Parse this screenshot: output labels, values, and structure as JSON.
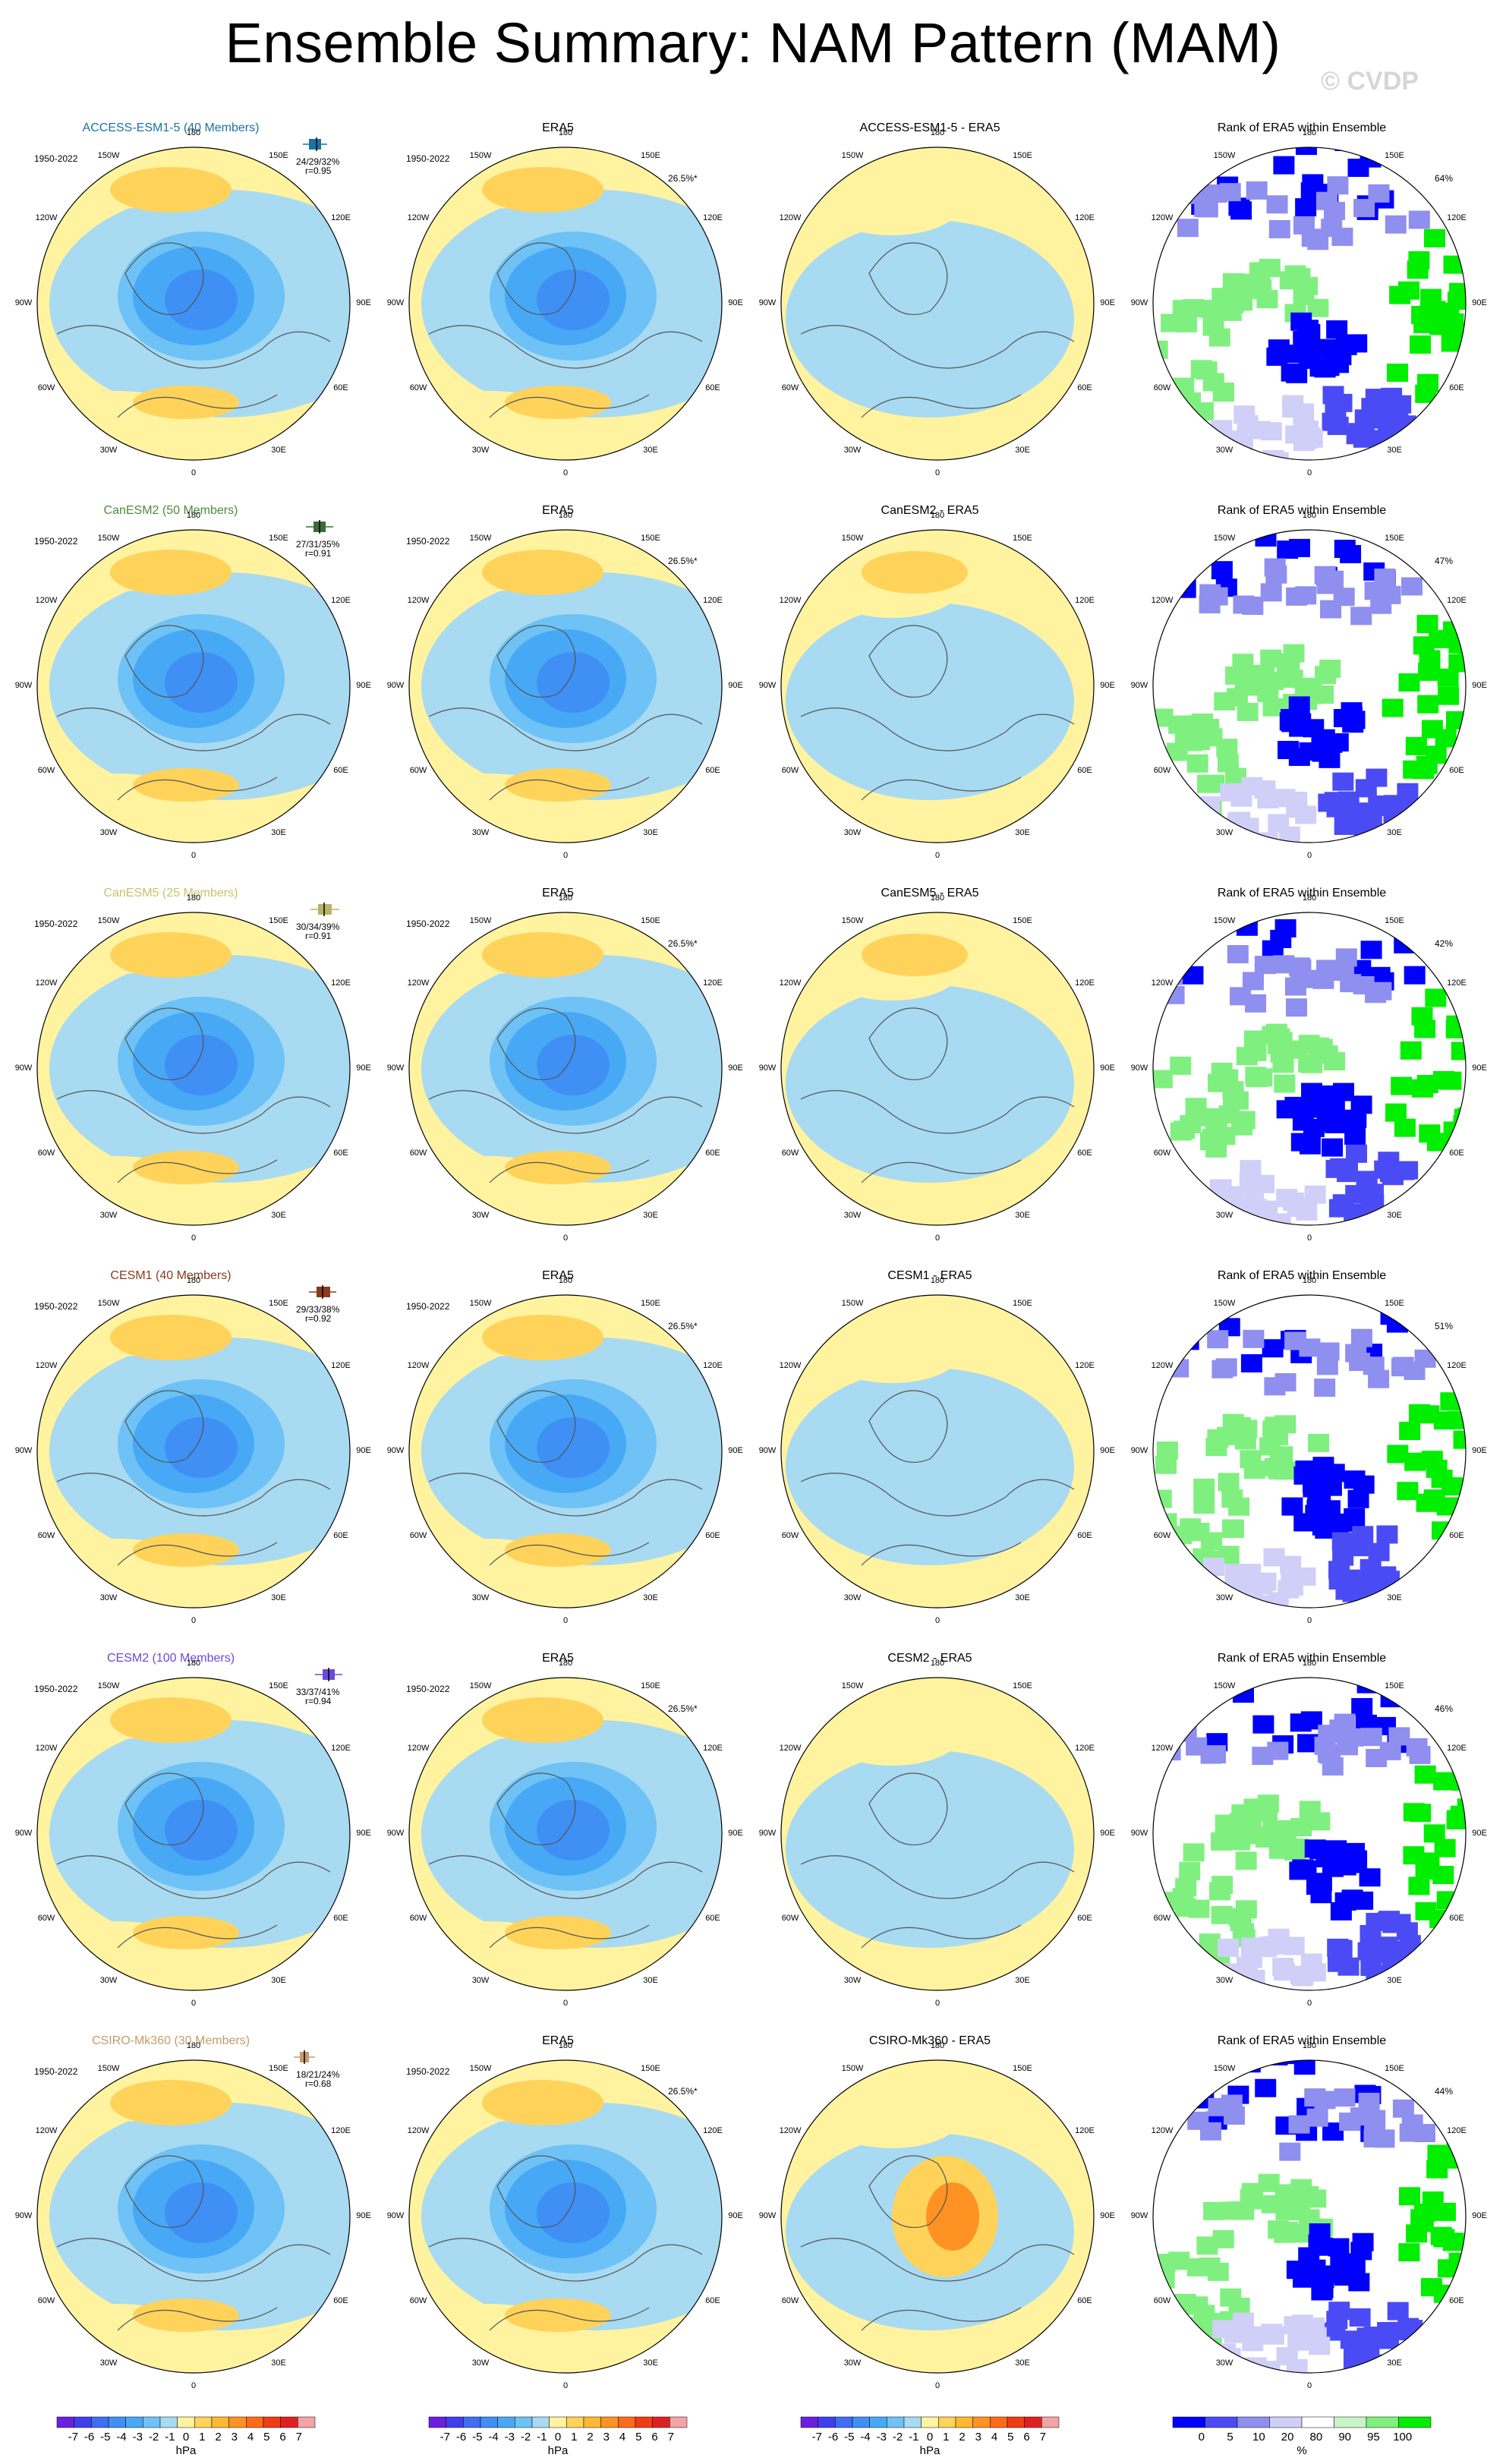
{
  "page": {
    "title": "Ensemble Summary: NAM Pattern (MAM)",
    "copyright": "© CVDP"
  },
  "common": {
    "period": "1950-2022",
    "obs_title": "ERA5",
    "obs_pct": "26.5%*",
    "rank_title": "Rank of ERA5 within Ensemble"
  },
  "lon_labels": [
    "180",
    "150E",
    "120E",
    "90E",
    "60E",
    "30E",
    "0",
    "30W",
    "60W",
    "90W",
    "120W",
    "150W"
  ],
  "rows": [
    {
      "model": "ACCESS-ESM1-5 (40 Members)",
      "model_color": "#1a73a3",
      "stats": "24/29/32%",
      "r": "r=0.95",
      "diff_title": "ACCESS-ESM1-5 - ERA5",
      "rank_pct": "64%",
      "box_color": "#1a73a3",
      "box_values": [
        20,
        24,
        29,
        32,
        36
      ]
    },
    {
      "model": "CanESM2 (50 Members)",
      "model_color": "#4d8a3a",
      "stats": "27/31/35%",
      "r": "r=0.91",
      "diff_title": "CanESM2 - ERA5",
      "rank_pct": "47%",
      "box_color": "#3b6b3a",
      "box_values": [
        22,
        27,
        31,
        35,
        40
      ]
    },
    {
      "model": "CanESM5 (25 Members)",
      "model_color": "#c6c46a",
      "stats": "30/34/39%",
      "r": "r=0.91",
      "diff_title": "CanESM5 - ERA5",
      "rank_pct": "42%",
      "box_color": "#b9b36a",
      "box_values": [
        25,
        30,
        34,
        39,
        44
      ]
    },
    {
      "model": "CESM1 (40 Members)",
      "model_color": "#8a3b1c",
      "stats": "29/33/38%",
      "r": "r=0.92",
      "diff_title": "CESM1 - ERA5",
      "rank_pct": "51%",
      "box_color": "#8a3b1c",
      "box_values": [
        24,
        29,
        33,
        38,
        42
      ]
    },
    {
      "model": "CESM2 (100 Members)",
      "model_color": "#6a4bd8",
      "stats": "33/37/41%",
      "r": "r=0.94",
      "diff_title": "CESM2 - ERA5",
      "rank_pct": "46%",
      "box_color": "#6a4bd8",
      "box_values": [
        28,
        33,
        37,
        41,
        46
      ]
    },
    {
      "model": "CSIRO-Mk360 (30 Members)",
      "model_color": "#c79a6b",
      "stats": "18/21/24%",
      "r": "r=0.68",
      "diff_title": "CSIRO-Mk360 - ERA5",
      "rank_pct": "44%",
      "box_color": "#c79a6b",
      "box_values": [
        14,
        18,
        21,
        24,
        28
      ]
    }
  ],
  "chart_data": {
    "type": "heatmap",
    "description_title": "Ensemble Summary: NAM Pattern (MAM)",
    "projection": "north-polar-stereographic",
    "columns": [
      "model ensemble-mean pattern",
      "ERA5",
      "model - ERA5",
      "Rank of ERA5 within Ensemble"
    ],
    "hpa_colorbar": {
      "label": "hPa",
      "ticks": [
        "-7",
        "-6",
        "-5",
        "-4",
        "-3",
        "-2",
        "-1",
        "0",
        "1",
        "2",
        "3",
        "4",
        "5",
        "6",
        "7"
      ],
      "colors": [
        "#6a1fe0",
        "#3f3fef",
        "#3f6ef2",
        "#3f8ff5",
        "#47a9f5",
        "#6ec2f5",
        "#a8daf2",
        "#fff3a0",
        "#ffd35a",
        "#ffb830",
        "#ff9222",
        "#ff6a18",
        "#f03c14",
        "#e02020",
        "#f4a3a6"
      ]
    },
    "rank_colorbar": {
      "label": "%",
      "ticks": [
        "0",
        "5",
        "10",
        "20",
        "80",
        "90",
        "95",
        "100"
      ],
      "colors": [
        "#0000ff",
        "#4b4bf5",
        "#8f8ff0",
        "#cfcff8",
        "#ffffff",
        "#c8f5c8",
        "#7ff07f",
        "#00ee00"
      ]
    }
  }
}
